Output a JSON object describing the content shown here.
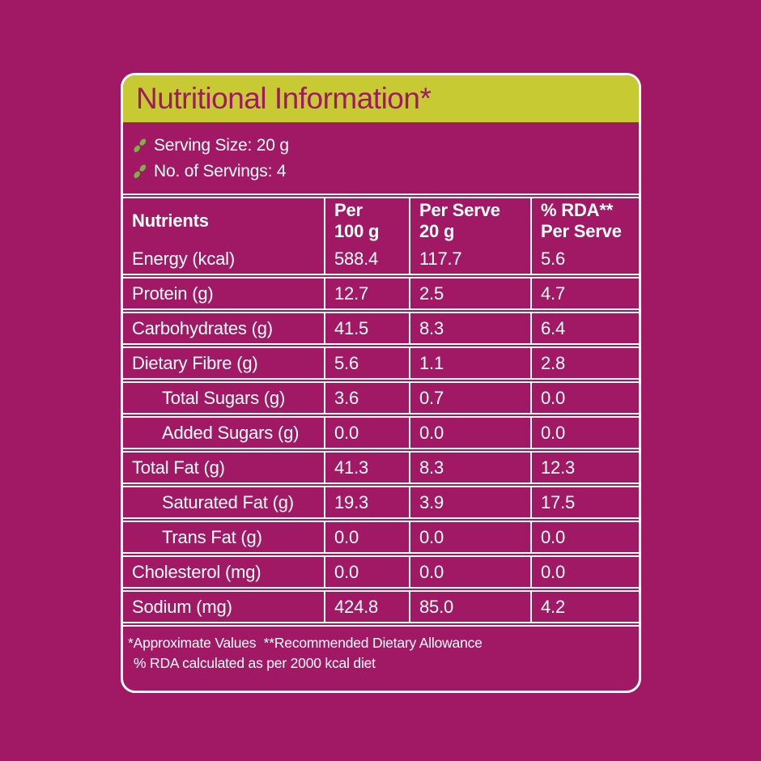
{
  "colors": {
    "background": "#A11864",
    "title_bar": "#C8CA34",
    "title_text": "#A11864",
    "body_text": "#FFFFFF",
    "leaf_green": "#79B43F",
    "border": "#FFFFFF"
  },
  "title": "Nutritional Information*",
  "serving": {
    "items": [
      "Serving Size: 20 g",
      "No. of Servings: 4"
    ]
  },
  "table": {
    "columns": [
      {
        "l1": "Nutrients",
        "l2": ""
      },
      {
        "l1": "Per",
        "l2": "100 g"
      },
      {
        "l1": "Per Serve",
        "l2": "20 g"
      },
      {
        "l1": "% RDA**",
        "l2": "Per Serve"
      }
    ],
    "rows": [
      {
        "name": "Energy (kcal)",
        "per100": "588.4",
        "serve": "117.7",
        "rda": "5.6",
        "indent": false
      },
      {
        "name": "Protein (g)",
        "per100": "12.7",
        "serve": "2.5",
        "rda": "4.7",
        "indent": false
      },
      {
        "name": "Carbohydrates (g)",
        "per100": "41.5",
        "serve": "8.3",
        "rda": "6.4",
        "indent": false
      },
      {
        "name": "Dietary Fibre (g)",
        "per100": "5.6",
        "serve": "1.1",
        "rda": "2.8",
        "indent": false
      },
      {
        "name": "Total Sugars (g)",
        "per100": "3.6",
        "serve": "0.7",
        "rda": "0.0",
        "indent": true
      },
      {
        "name": "Added Sugars (g)",
        "per100": "0.0",
        "serve": "0.0",
        "rda": "0.0",
        "indent": true
      },
      {
        "name": "Total Fat (g)",
        "per100": "41.3",
        "serve": "8.3",
        "rda": "12.3",
        "indent": false
      },
      {
        "name": "Saturated Fat (g)",
        "per100": "19.3",
        "serve": "3.9",
        "rda": "17.5",
        "indent": true
      },
      {
        "name": "Trans Fat (g)",
        "per100": "0.0",
        "serve": "0.0",
        "rda": "0.0",
        "indent": true
      },
      {
        "name": "Cholesterol (mg)",
        "per100": "0.0",
        "serve": "0.0",
        "rda": "0.0",
        "indent": false
      },
      {
        "name": "Sodium (mg)",
        "per100": "424.8",
        "serve": "85.0",
        "rda": "4.2",
        "indent": false
      }
    ]
  },
  "footnotes": {
    "line1": "*Approximate Values  **Recommended Dietary Allowance",
    "line2": "% RDA calculated as per 2000 kcal diet"
  }
}
